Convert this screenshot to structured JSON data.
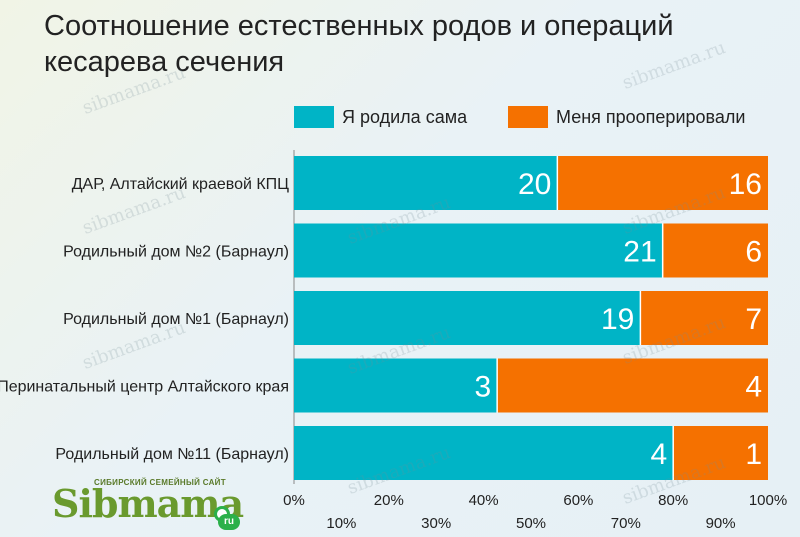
{
  "chart_data": {
    "type": "bar",
    "stacked": true,
    "orientation": "horizontal",
    "normalized_percent": true,
    "title": "Соотношение естественных родов и операций кесарева сечения",
    "categories": [
      "ДАР, Алтайский краевой КПЦ",
      "Родильный дом №2 (Барнаул)",
      "Родильный дом №1 (Барнаул)",
      "Перинатальный центр Алтайского края",
      "Родильный дом №11 (Барнаул)"
    ],
    "series": [
      {
        "name": "Я родила сама",
        "color": "#00b4c6",
        "values": [
          20,
          21,
          19,
          3,
          4
        ]
      },
      {
        "name": "Меня прооперировали",
        "color": "#f57100",
        "values": [
          16,
          6,
          7,
          4,
          1
        ]
      }
    ],
    "x_ticks_row1": [
      "0%",
      "20%",
      "40%",
      "60%",
      "80%",
      "100%"
    ],
    "x_ticks_row2": [
      "10%",
      "30%",
      "50%",
      "70%",
      "90%"
    ],
    "xlim": [
      0,
      100
    ],
    "legend_position": "top",
    "grid": false
  },
  "legend": {
    "item1": "Я родила сама",
    "item2": "Меня прооперировали"
  },
  "logo": {
    "subtitle": "СИБИРСКИЙ СЕМЕЙНЫЙ САЙТ",
    "name": "Sibmama",
    "suffix": "ru"
  },
  "watermark_text": "sibmama.ru"
}
